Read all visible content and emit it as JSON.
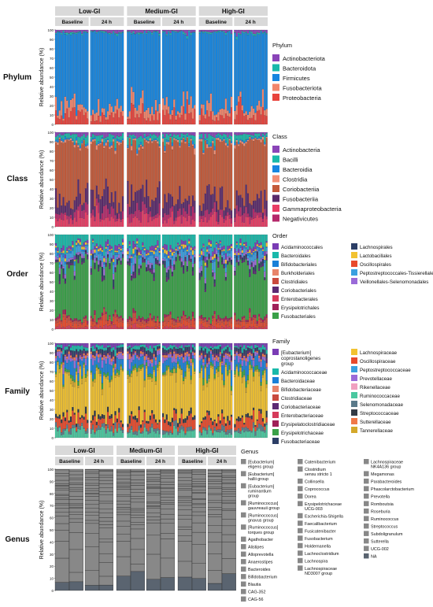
{
  "groups": [
    "Low-GI",
    "Medium-GI",
    "High-GI"
  ],
  "timepoints": [
    "Baseline",
    "24 h"
  ],
  "ylabel": "Relative abundance (%)",
  "yticks": [
    0,
    10,
    20,
    30,
    40,
    50,
    60,
    70,
    80,
    90,
    100
  ],
  "colors": {
    "Actinobacteriota": "#8a44b8",
    "Bacteroidota": "#19b9aa",
    "Firmicutes": "#1686e0",
    "Fusobacteriota": "#f2866c",
    "Proteobacteria": "#e8433c",
    "Actinobacteria": "#8a44b8",
    "Bacilli": "#19b9aa",
    "Bacteroidia": "#1686e0",
    "Clostridia": "#f28e74",
    "Coriobacteriia": "#c45a3a",
    "Fusobacteriia": "#5a2a6a",
    "Gammaproteobacteria": "#e83c64",
    "Negativicutes": "#b5286a",
    "Acidaminococcales": "#7a3cb5",
    "Bacteroidales": "#19b9aa",
    "Bifidobacteriales": "#1a80d8",
    "Burkholderiales": "#e8846a",
    "Clostridiales": "#c94a3e",
    "Coriobacteriales": "#5c2a74",
    "Enterobacterales": "#d63a5a",
    "Erysipelotrichales": "#a02058",
    "Fusobacteriales": "#3aa048",
    "Lachnospirales": "#2c3e66",
    "Lactobacillales": "#f2c230",
    "Oscillospirales": "#e84a2c",
    "Peptostreptococcales-Tissierellales": "#3aa0e0",
    "Veillonellales-Selenomonadales": "#9a6ad8",
    "[Eubacterium] coprostanoligenes group": "#7a3cb5",
    "Acidaminococcaceae": "#19b9aa",
    "Bacteroidaceae": "#1a80d8",
    "Bifidobacteriaceae": "#e8846a",
    "Clostridiaceae": "#c94a3e",
    "Coriobacteriaceae": "#5c2a74",
    "Enterobacteriaceae": "#d63a5a",
    "Erysipelatoclostridiaceae": "#a02058",
    "Erysipelotrichaceae": "#3aa048",
    "Fusobacteriaceae": "#2c3e66",
    "Lachnospiraceae": "#f2c230",
    "Oscillospiraceae": "#e84a2c",
    "Peptostreptococcaceae": "#3aa0e0",
    "Prevotellaceae": "#9a6ad8",
    "Rikenellaceae": "#f0a0c0",
    "Ruminococcaceae": "#4ac8a0",
    "Selenomonadaceae": "#5a7a8a",
    "Streptococcaceae": "#333b46",
    "Sutterellaceae": "#f07848",
    "Tannerellaceae": "#d4a82a",
    "NA": "#5a6470"
  },
  "chart_data": [
    {
      "type": "bar",
      "panel": "Phylum",
      "legend_title": "Phylum",
      "stacked": true,
      "groups": [
        "Low-GI",
        "Medium-GI",
        "High-GI"
      ],
      "timepoints": [
        "Baseline",
        "24 h"
      ],
      "ylabel": "Relative abundance (%)",
      "ylim": [
        0,
        100
      ],
      "legend": [
        "Actinobacteriota",
        "Bacteroidota",
        "Firmicutes",
        "Fusobacteriota",
        "Proteobacteria"
      ],
      "stack_order": [
        "Proteobacteria",
        "Fusobacteriota",
        "Firmicutes",
        "Bacteroidota",
        "Actinobacteriota"
      ],
      "mean_composition": [
        2,
        1,
        80,
        8,
        9
      ]
    },
    {
      "type": "bar",
      "panel": "Class",
      "legend_title": "Class",
      "stacked": true,
      "ylabel": "Relative abundance (%)",
      "ylim": [
        0,
        100
      ],
      "legend": [
        "Actinobacteria",
        "Bacilli",
        "Bacteroidia",
        "Clostridia",
        "Coriobacteriia",
        "Fusobacteriia",
        "Gammaproteobacteria",
        "Negativicutes"
      ],
      "stack_order": [
        "Gammaproteobacteria",
        "Negativicutes",
        "Fusobacteriia",
        "Coriobacteriia",
        "Clostridia",
        "Bacteroidia",
        "Bacilli",
        "Actinobacteria"
      ],
      "mean_composition": [
        3,
        5,
        2,
        2,
        58,
        15,
        8,
        7
      ]
    },
    {
      "type": "bar",
      "panel": "Order",
      "legend_title": "Order",
      "stacked": true,
      "ylabel": "Relative abundance (%)",
      "ylim": [
        0,
        100
      ],
      "legend": [
        "Acidaminococcales",
        "Bacteroidales",
        "Bifidobacteriales",
        "Burkholderiales",
        "Clostridiales",
        "Coriobacteriales",
        "Enterobacterales",
        "Erysipelotrichales",
        "Fusobacteriales",
        "Lachnospirales",
        "Lactobacillales",
        "Oscillospirales",
        "Peptostreptococcales-Tissierellales",
        "Veillonellales-Selenomonadales"
      ],
      "stack_order": [
        "Enterobacterales",
        "Oscillospirales",
        "Clostridiales",
        "Erysipelotrichales",
        "Fusobacteriales",
        "Coriobacteriales",
        "Lachnospirales",
        "Veillonellales-Selenomonadales",
        "Peptostreptococcales-Tissierellales",
        "Bifidobacteriales",
        "Lactobacillales",
        "Acidaminococcales",
        "Bacteroidales"
      ],
      "mean_composition": [
        3,
        10,
        2,
        14,
        3,
        2,
        2,
        2,
        45,
        3,
        2,
        4,
        5,
        3
      ]
    },
    {
      "type": "bar",
      "panel": "Family",
      "legend_title": "Family",
      "stacked": true,
      "ylabel": "Relative abundance (%)",
      "ylim": [
        0,
        100
      ],
      "legend": [
        "[Eubacterium] coprostanoligenes group",
        "Acidaminococcaceae",
        "Bacteroidaceae",
        "Bifidobacteriaceae",
        "Clostridiaceae",
        "Coriobacteriaceae",
        "Enterobacteriaceae",
        "Erysipelatoclostridiaceae",
        "Erysipelotrichaceae",
        "Fusobacteriaceae",
        "Lachnospiraceae",
        "Oscillospiraceae",
        "Peptostreptococcaceae",
        "Prevotellaceae",
        "Rikenellaceae",
        "Ruminococcaceae",
        "Selenomonadaceae",
        "Streptococcaceae",
        "Sutterellaceae",
        "Tannerellaceae"
      ],
      "stack_order": [
        "Ruminococcaceae",
        "Selenomonadaceae",
        "Oscillospiraceae",
        "Streptococcaceae",
        "Lachnospiraceae",
        "Tannerellaceae",
        "Erysipelotrichaceae",
        "Bacteroidaceae",
        "Prevotellaceae",
        "Sutterellaceae",
        "Coriobacteriaceae",
        "Fusobacteriaceae",
        "Acidaminococcaceae",
        "[Eubacterium] coprostanoligenes group"
      ],
      "mean_composition": [
        3,
        3,
        8,
        2,
        2,
        2,
        2,
        2,
        3,
        3,
        40,
        8,
        3,
        4,
        2,
        6,
        3,
        3,
        2,
        3
      ]
    },
    {
      "type": "bar",
      "panel": "Genus",
      "legend_title": "Genus",
      "stacked": true,
      "ylabel": "Relative abundance (%)",
      "ylim": [
        0,
        100
      ],
      "legend": [
        "[Eubacterium] eligens group",
        "[Eubacterium] hallii group",
        "[Eubacterium] ruminantium group",
        "[Ruminococcus] gauvreauii group",
        "[Ruminococcus] gnavus group",
        "[Ruminococcus] torques group",
        "Agathobacter",
        "Alistipes",
        "Alloprevotella",
        "Anaerostipes",
        "Bacteroides",
        "Bifidobacterium",
        "Blautia",
        "CAG-352",
        "CAG-56",
        "Catenibacterium",
        "Clostridium sensu stricto 1",
        "Collinsella",
        "Coprococcus",
        "Dorea",
        "Erysipelotrichaceae UCG-003",
        "Escherichia-Shigella",
        "Faecalibacterium",
        "Fusicatenibacter",
        "Fusobacterium",
        "Holdemanella",
        "Lachnoclostridium",
        "Lachnospira",
        "Lachnospiraceae ND3007 group",
        "Lachnospiraceae NK4A136 group",
        "Megamonas",
        "Parabacteroides",
        "Phascolarctobacterium",
        "Prevotella",
        "Romboutsia",
        "Roseburia",
        "Ruminococcus",
        "Streptococcus",
        "Subdoligranulum",
        "Sutterella",
        "UCG-002",
        "NA"
      ],
      "stack_order": [
        "NA",
        "Bacteroides",
        "Faecalibacterium",
        "Blautia",
        "Subdoligranulum",
        "Collinsella",
        "Agathobacter",
        "Roseburia",
        "Prevotella",
        "Dorea",
        "Fusicatenibacter",
        "Ruminococcus",
        "Bifidobacterium",
        "Streptococcus",
        "Alistipes",
        "Escherichia-Shigella",
        "Megamonas",
        "Lachnospira",
        "Parabacteroides",
        "Coprococcus",
        "Anaerostipes",
        "Holdemanella",
        "Romboutsia",
        "Catenibacterium"
      ],
      "mean_composition": [
        3,
        2,
        2,
        2,
        2,
        2,
        6,
        3,
        2,
        3,
        14,
        4,
        8,
        1,
        1,
        1,
        1,
        5,
        2,
        2,
        1,
        2,
        12,
        3,
        1,
        2,
        1,
        2,
        1,
        1,
        2,
        2,
        2,
        3,
        2,
        3,
        2,
        2,
        6,
        1,
        1,
        10
      ]
    }
  ]
}
